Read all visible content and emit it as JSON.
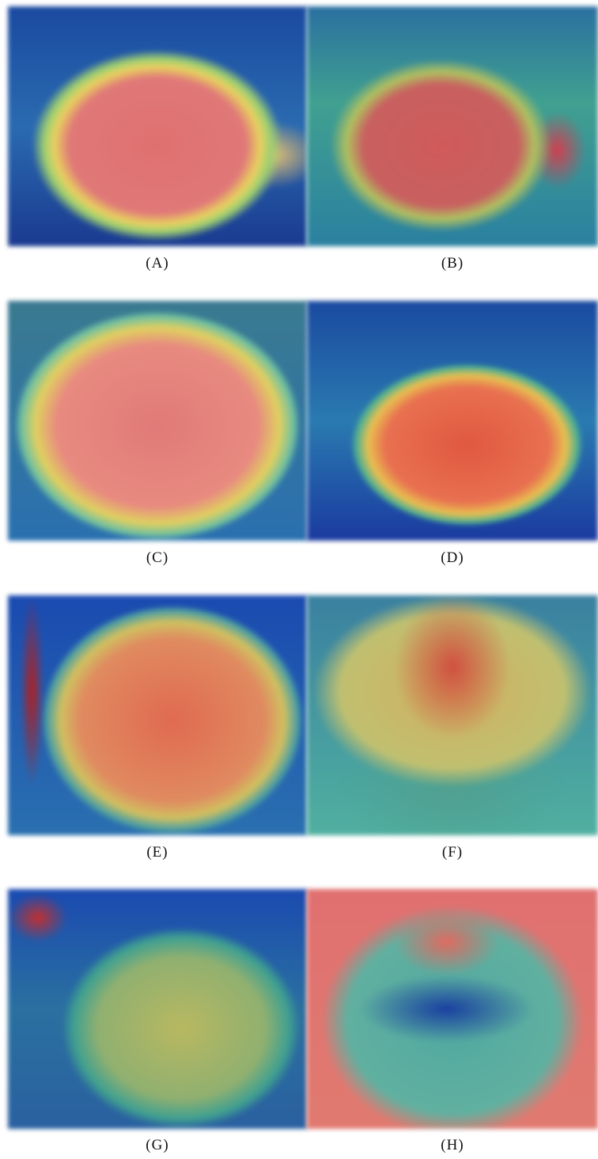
{
  "figure": {
    "panels": [
      {
        "label": "(A)"
      },
      {
        "label": "(B)"
      },
      {
        "label": "(C)"
      },
      {
        "label": "(D)"
      },
      {
        "label": "(E)"
      },
      {
        "label": "(F)"
      },
      {
        "label": "(G)"
      },
      {
        "label": "(H)"
      }
    ]
  }
}
